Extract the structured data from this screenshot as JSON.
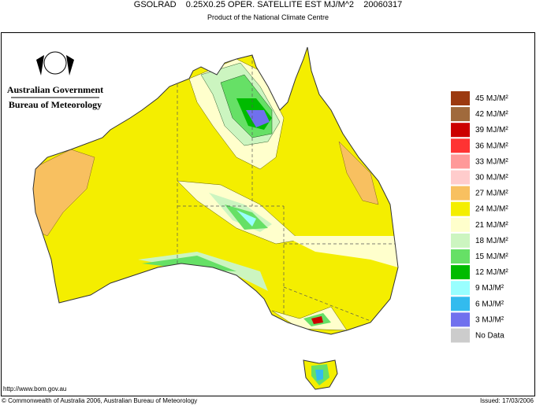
{
  "header": {
    "title": "GSOLRAD    0.25X0.25 OPER. SATELLITE EST MJ/M^2    20060317",
    "subtitle": "Product of the National Climate Centre"
  },
  "logo": {
    "line1": "Australian Government",
    "line2": "Bureau of Meteorology"
  },
  "legend": [
    {
      "label": "45 MJ/M²",
      "color": "#9c3a10"
    },
    {
      "label": "42 MJ/M²",
      "color": "#a06a3c"
    },
    {
      "label": "39 MJ/M²",
      "color": "#cc0000"
    },
    {
      "label": "36 MJ/M²",
      "color": "#ff3333"
    },
    {
      "label": "33 MJ/M²",
      "color": "#ff9999"
    },
    {
      "label": "30 MJ/M²",
      "color": "#ffcccc"
    },
    {
      "label": "27 MJ/M²",
      "color": "#f8c060"
    },
    {
      "label": "24 MJ/M²",
      "color": "#f4ee00"
    },
    {
      "label": "21 MJ/M²",
      "color": "#ffffcc"
    },
    {
      "label": "18 MJ/M²",
      "color": "#ccf5c0"
    },
    {
      "label": "15 MJ/M²",
      "color": "#66e066"
    },
    {
      "label": "12 MJ/M²",
      "color": "#00bb00"
    },
    {
      "label": "9 MJ/M²",
      "color": "#99ffff"
    },
    {
      "label": "6 MJ/M²",
      "color": "#33bbee"
    },
    {
      "label": "3 MJ/M²",
      "color": "#7070ee"
    },
    {
      "label": "No Data",
      "color": "#cccccc"
    }
  ],
  "footer": {
    "url": "http://www.bom.gov.au",
    "copyright": "© Commonwealth of Australia 2006, Australian Bureau of Meteorology",
    "issued": "Issued: 17/03/2006"
  }
}
